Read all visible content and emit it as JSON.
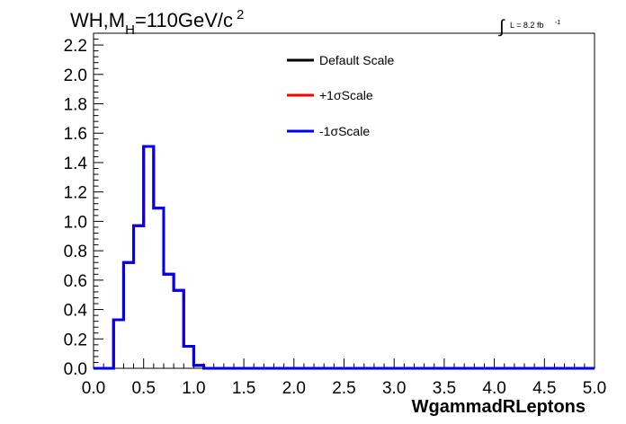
{
  "chart_data": {
    "type": "histogram-step",
    "title": {
      "prefix": "WH,M",
      "subscript": "H",
      "value": "=110GeV/c",
      "superscript": "2"
    },
    "luminosity": {
      "integral_symbol": "∫",
      "text": "L = 8.2 fb",
      "exponent": "-1"
    },
    "xlabel": "WgammadRLeptons",
    "ylabel": "",
    "xlim": [
      0.0,
      5.0
    ],
    "ylim": [
      0.0,
      2.28
    ],
    "x_ticks": [
      0.0,
      0.5,
      1.0,
      1.5,
      2.0,
      2.5,
      3.0,
      3.5,
      4.0,
      4.5,
      5.0
    ],
    "x_tick_labels": [
      "0.0",
      "0.5",
      "1.0",
      "1.5",
      "2.0",
      "2.5",
      "3.0",
      "3.5",
      "4.0",
      "4.5",
      "5.0"
    ],
    "y_ticks": [
      0.0,
      0.2,
      0.4,
      0.6,
      0.8,
      1.0,
      1.2,
      1.4,
      1.6,
      1.8,
      2.0,
      2.2
    ],
    "y_tick_labels": [
      "0.0",
      "0.2",
      "0.4",
      "0.6",
      "0.8",
      "1.0",
      "1.2",
      "1.4",
      "1.6",
      "1.8",
      "2.0",
      "2.2"
    ],
    "bin_width": 0.1,
    "bin_edges": [
      0.0,
      0.1,
      0.2,
      0.3,
      0.4,
      0.5,
      0.6,
      0.7,
      0.8,
      0.9,
      1.0,
      1.1,
      1.2,
      1.3,
      1.4,
      1.5,
      1.6,
      1.7,
      1.8,
      1.9,
      2.0,
      2.1,
      2.2,
      2.3,
      2.4,
      2.5,
      2.6,
      2.7,
      2.8,
      2.9,
      3.0,
      3.1,
      3.2,
      3.3,
      3.4,
      3.5,
      3.6,
      3.7,
      3.8,
      3.9,
      4.0,
      4.1,
      4.2,
      4.3,
      4.4,
      4.5,
      4.6,
      4.7,
      4.8,
      4.9,
      5.0
    ],
    "series": [
      {
        "name": "Default Scale",
        "color": "#000000",
        "values": [
          0,
          0,
          0.33,
          0.72,
          0.97,
          1.51,
          1.09,
          0.64,
          0.53,
          0.15,
          0.02,
          0,
          0,
          0,
          0,
          0,
          0,
          0,
          0,
          0,
          0,
          0,
          0,
          0,
          0,
          0,
          0,
          0,
          0,
          0,
          0,
          0,
          0,
          0,
          0,
          0,
          0,
          0,
          0,
          0,
          0,
          0,
          0,
          0,
          0,
          0,
          0,
          0,
          0,
          0
        ]
      },
      {
        "name": "+1σScale",
        "color": "#ff0000",
        "values": [
          0,
          0,
          0.33,
          0.72,
          0.97,
          1.51,
          1.09,
          0.64,
          0.53,
          0.15,
          0.02,
          0,
          0,
          0,
          0,
          0,
          0,
          0,
          0,
          0,
          0,
          0,
          0,
          0,
          0,
          0,
          0,
          0,
          0,
          0,
          0,
          0,
          0,
          0,
          0,
          0,
          0,
          0,
          0,
          0,
          0,
          0,
          0,
          0,
          0,
          0,
          0,
          0,
          0,
          0
        ]
      },
      {
        "name": "-1σScale",
        "color": "#0000ee",
        "values": [
          0,
          0,
          0.33,
          0.72,
          0.97,
          1.51,
          1.09,
          0.64,
          0.53,
          0.15,
          0.02,
          0,
          0,
          0,
          0,
          0,
          0,
          0,
          0,
          0,
          0,
          0,
          0,
          0,
          0,
          0,
          0,
          0,
          0,
          0,
          0,
          0,
          0,
          0,
          0,
          0,
          0,
          0,
          0,
          0,
          0,
          0,
          0,
          0,
          0,
          0,
          0,
          0,
          0,
          0
        ]
      }
    ],
    "legend_placement": "top-center",
    "grid": false
  }
}
